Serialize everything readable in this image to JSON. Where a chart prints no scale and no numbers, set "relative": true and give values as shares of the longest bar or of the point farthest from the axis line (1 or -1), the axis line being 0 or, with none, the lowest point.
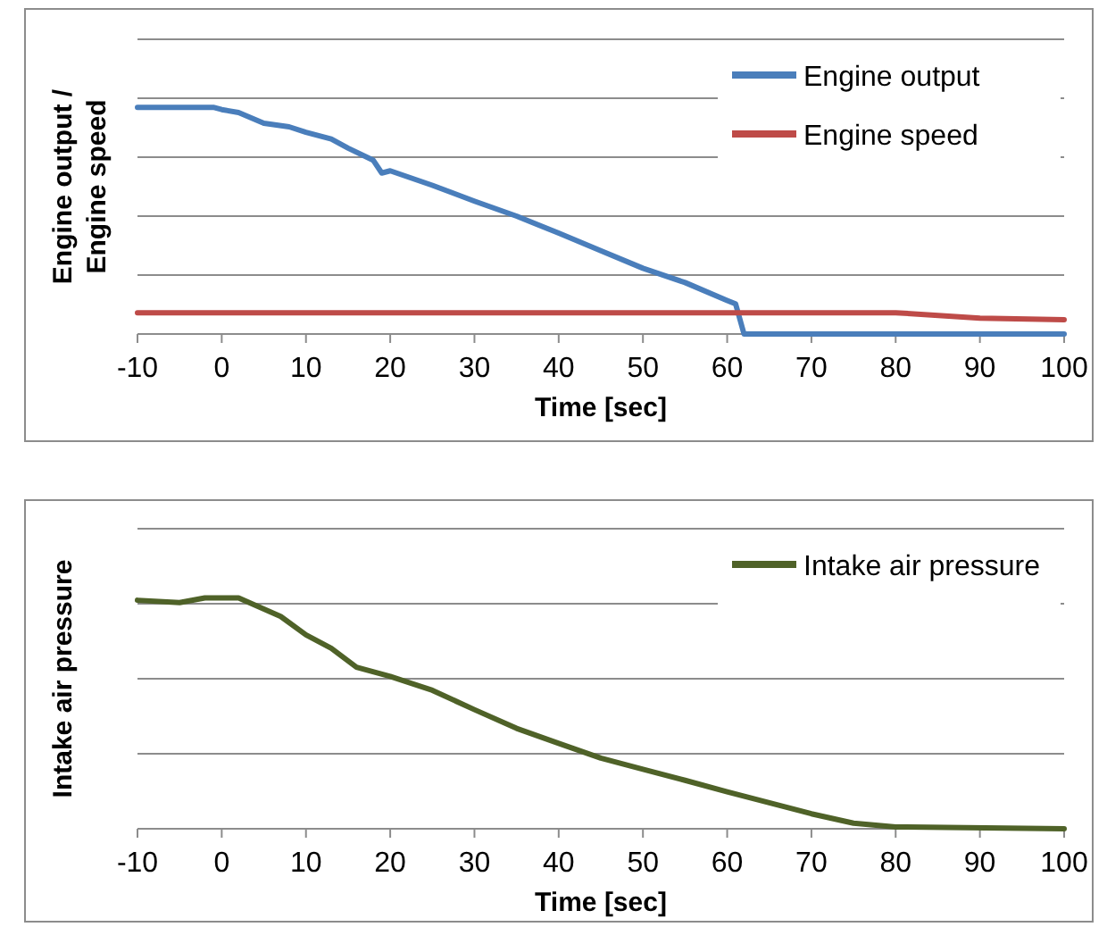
{
  "chart_data": [
    {
      "type": "line",
      "ylabel": "Engine output / Engine speed",
      "xlabel": "Time [sec]",
      "relative": true,
      "xlim": [
        -10,
        100
      ],
      "xticks": [
        -10,
        0,
        10,
        20,
        30,
        40,
        50,
        60,
        70,
        80,
        90,
        100
      ],
      "grid": "y",
      "legend": "top right",
      "marker": "none",
      "line_style": "solid",
      "series": [
        {
          "name": "Engine output",
          "color": "#4a7ebb",
          "x": [
            -10,
            -5,
            -1,
            0,
            2,
            5,
            8,
            10,
            13,
            15,
            18,
            19,
            20,
            25,
            30,
            35,
            40,
            45,
            50,
            55,
            60,
            61,
            62,
            100
          ],
          "values": [
            1,
            1,
            1,
            0.99,
            0.977,
            0.93,
            0.914,
            0.89,
            0.86,
            0.82,
            0.766,
            0.71,
            0.72,
            0.656,
            0.586,
            0.52,
            0.445,
            0.367,
            0.29,
            0.227,
            0.148,
            0.133,
            0,
            0
          ]
        },
        {
          "name": "Engine speed",
          "color": "#be4b48",
          "x": [
            -10,
            80,
            90,
            100
          ],
          "values": [
            0.094,
            0.094,
            0.07,
            0.063
          ]
        }
      ]
    },
    {
      "type": "line",
      "ylabel": "Intake air pressure",
      "xlabel": "Time [sec]",
      "relative": true,
      "xlim": [
        -10,
        100
      ],
      "xticks": [
        -10,
        0,
        10,
        20,
        30,
        40,
        50,
        60,
        70,
        80,
        90,
        100
      ],
      "grid": "y",
      "legend": "top right",
      "marker": "none",
      "line_style": "solid",
      "series": [
        {
          "name": "Intake air pressure",
          "color": "#4f6228",
          "x": [
            -10,
            -5,
            -2,
            2,
            7,
            10,
            13,
            16,
            20,
            25,
            30,
            35,
            40,
            45,
            50,
            55,
            60,
            65,
            70,
            75,
            80,
            100
          ],
          "values": [
            0.99,
            0.98,
            1,
            1,
            0.92,
            0.84,
            0.782,
            0.7,
            0.66,
            0.6,
            0.516,
            0.435,
            0.37,
            0.306,
            0.258,
            0.21,
            0.16,
            0.113,
            0.065,
            0.024,
            0.008,
            0
          ]
        }
      ]
    }
  ]
}
